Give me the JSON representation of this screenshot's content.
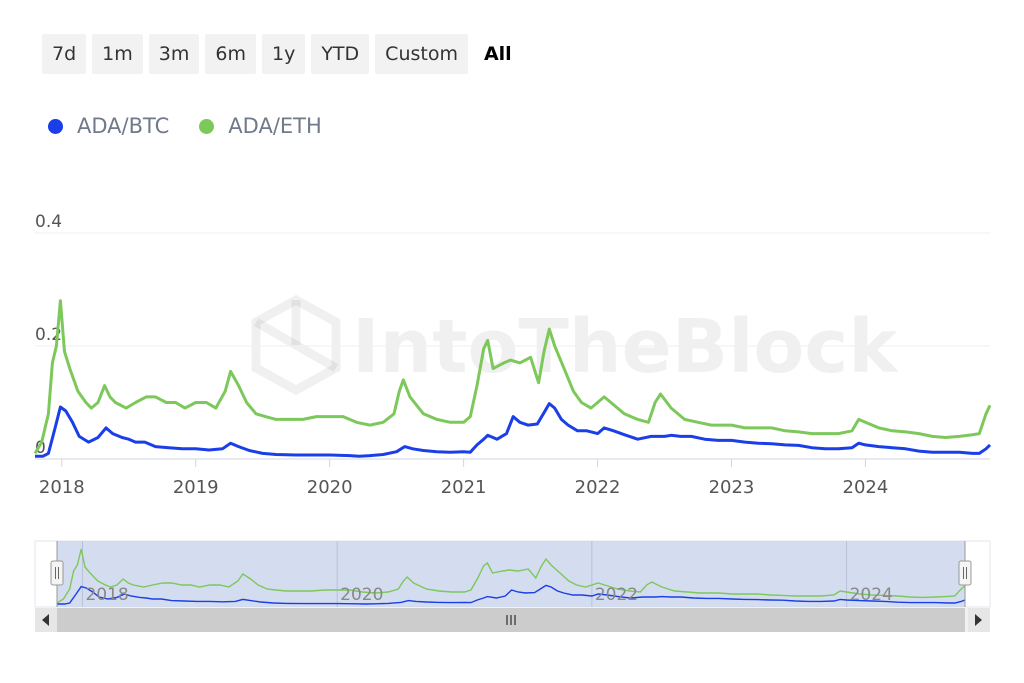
{
  "range_selector": {
    "buttons": [
      "7d",
      "1m",
      "3m",
      "6m",
      "1y",
      "YTD",
      "Custom",
      "All"
    ],
    "active": "All"
  },
  "watermark": "IntoTheBlock",
  "chart_data": {
    "type": "line",
    "title": "",
    "xlabel": "",
    "ylabel": "",
    "x_range": [
      2017.8,
      2024.93
    ],
    "ylim": [
      0,
      0.4
    ],
    "yticks": [
      0,
      0.2,
      0.4
    ],
    "ytick_labels": [
      "0",
      "0.2",
      "0.4"
    ],
    "xticks": [
      2018,
      2019,
      2020,
      2021,
      2022,
      2023,
      2024
    ],
    "xtick_labels": [
      "2018",
      "2019",
      "2020",
      "2021",
      "2022",
      "2023",
      "2024"
    ],
    "navigator_tick_labels": [
      "2018",
      "2020",
      "2022",
      "2024"
    ],
    "legend_position": "top-left",
    "series": [
      {
        "name": "ADA/BTC",
        "color": "#1a3ee8",
        "points": [
          [
            2017.8,
            0.005
          ],
          [
            2017.86,
            0.005
          ],
          [
            2017.9,
            0.01
          ],
          [
            2017.95,
            0.055
          ],
          [
            2017.99,
            0.092
          ],
          [
            2018.03,
            0.085
          ],
          [
            2018.08,
            0.065
          ],
          [
            2018.13,
            0.04
          ],
          [
            2018.2,
            0.03
          ],
          [
            2018.27,
            0.038
          ],
          [
            2018.33,
            0.055
          ],
          [
            2018.38,
            0.045
          ],
          [
            2018.45,
            0.038
          ],
          [
            2018.5,
            0.035
          ],
          [
            2018.55,
            0.03
          ],
          [
            2018.62,
            0.03
          ],
          [
            2018.7,
            0.022
          ],
          [
            2018.8,
            0.02
          ],
          [
            2018.9,
            0.018
          ],
          [
            2019.0,
            0.018
          ],
          [
            2019.1,
            0.016
          ],
          [
            2019.2,
            0.018
          ],
          [
            2019.26,
            0.028
          ],
          [
            2019.32,
            0.022
          ],
          [
            2019.4,
            0.015
          ],
          [
            2019.5,
            0.01
          ],
          [
            2019.6,
            0.008
          ],
          [
            2019.75,
            0.007
          ],
          [
            2019.9,
            0.007
          ],
          [
            2020.0,
            0.007
          ],
          [
            2020.15,
            0.006
          ],
          [
            2020.22,
            0.005
          ],
          [
            2020.3,
            0.006
          ],
          [
            2020.4,
            0.008
          ],
          [
            2020.5,
            0.013
          ],
          [
            2020.56,
            0.022
          ],
          [
            2020.62,
            0.018
          ],
          [
            2020.7,
            0.015
          ],
          [
            2020.8,
            0.013
          ],
          [
            2020.9,
            0.012
          ],
          [
            2021.0,
            0.013
          ],
          [
            2021.05,
            0.012
          ],
          [
            2021.1,
            0.025
          ],
          [
            2021.15,
            0.035
          ],
          [
            2021.18,
            0.042
          ],
          [
            2021.25,
            0.035
          ],
          [
            2021.32,
            0.045
          ],
          [
            2021.37,
            0.075
          ],
          [
            2021.42,
            0.065
          ],
          [
            2021.48,
            0.06
          ],
          [
            2021.55,
            0.062
          ],
          [
            2021.6,
            0.082
          ],
          [
            2021.64,
            0.098
          ],
          [
            2021.68,
            0.09
          ],
          [
            2021.73,
            0.07
          ],
          [
            2021.78,
            0.06
          ],
          [
            2021.85,
            0.05
          ],
          [
            2021.92,
            0.05
          ],
          [
            2022.0,
            0.045
          ],
          [
            2022.05,
            0.055
          ],
          [
            2022.12,
            0.05
          ],
          [
            2022.2,
            0.043
          ],
          [
            2022.3,
            0.035
          ],
          [
            2022.4,
            0.04
          ],
          [
            2022.5,
            0.04
          ],
          [
            2022.55,
            0.042
          ],
          [
            2022.62,
            0.04
          ],
          [
            2022.7,
            0.04
          ],
          [
            2022.8,
            0.035
          ],
          [
            2022.9,
            0.033
          ],
          [
            2023.0,
            0.033
          ],
          [
            2023.1,
            0.03
          ],
          [
            2023.2,
            0.028
          ],
          [
            2023.3,
            0.027
          ],
          [
            2023.4,
            0.025
          ],
          [
            2023.5,
            0.024
          ],
          [
            2023.6,
            0.02
          ],
          [
            2023.7,
            0.018
          ],
          [
            2023.8,
            0.018
          ],
          [
            2023.9,
            0.02
          ],
          [
            2023.95,
            0.028
          ],
          [
            2024.0,
            0.025
          ],
          [
            2024.1,
            0.022
          ],
          [
            2024.2,
            0.02
          ],
          [
            2024.3,
            0.018
          ],
          [
            2024.4,
            0.014
          ],
          [
            2024.5,
            0.012
          ],
          [
            2024.6,
            0.012
          ],
          [
            2024.7,
            0.012
          ],
          [
            2024.8,
            0.01
          ],
          [
            2024.85,
            0.01
          ],
          [
            2024.9,
            0.018
          ],
          [
            2024.93,
            0.025
          ]
        ]
      },
      {
        "name": "ADA/ETH",
        "color": "#7dc85a",
        "points": [
          [
            2017.8,
            0.01
          ],
          [
            2017.85,
            0.03
          ],
          [
            2017.9,
            0.08
          ],
          [
            2017.93,
            0.17
          ],
          [
            2017.96,
            0.2
          ],
          [
            2017.99,
            0.28
          ],
          [
            2018.02,
            0.19
          ],
          [
            2018.06,
            0.16
          ],
          [
            2018.12,
            0.12
          ],
          [
            2018.18,
            0.1
          ],
          [
            2018.22,
            0.09
          ],
          [
            2018.27,
            0.1
          ],
          [
            2018.32,
            0.13
          ],
          [
            2018.36,
            0.11
          ],
          [
            2018.4,
            0.1
          ],
          [
            2018.48,
            0.09
          ],
          [
            2018.55,
            0.1
          ],
          [
            2018.63,
            0.11
          ],
          [
            2018.7,
            0.11
          ],
          [
            2018.78,
            0.1
          ],
          [
            2018.85,
            0.1
          ],
          [
            2018.92,
            0.09
          ],
          [
            2019.0,
            0.1
          ],
          [
            2019.08,
            0.1
          ],
          [
            2019.15,
            0.09
          ],
          [
            2019.22,
            0.12
          ],
          [
            2019.26,
            0.155
          ],
          [
            2019.32,
            0.13
          ],
          [
            2019.38,
            0.1
          ],
          [
            2019.45,
            0.08
          ],
          [
            2019.52,
            0.075
          ],
          [
            2019.6,
            0.07
          ],
          [
            2019.7,
            0.07
          ],
          [
            2019.8,
            0.07
          ],
          [
            2019.9,
            0.075
          ],
          [
            2020.0,
            0.075
          ],
          [
            2020.1,
            0.075
          ],
          [
            2020.2,
            0.065
          ],
          [
            2020.3,
            0.06
          ],
          [
            2020.4,
            0.065
          ],
          [
            2020.48,
            0.08
          ],
          [
            2020.52,
            0.12
          ],
          [
            2020.55,
            0.14
          ],
          [
            2020.6,
            0.11
          ],
          [
            2020.7,
            0.08
          ],
          [
            2020.8,
            0.07
          ],
          [
            2020.9,
            0.065
          ],
          [
            2021.0,
            0.065
          ],
          [
            2021.05,
            0.075
          ],
          [
            2021.1,
            0.13
          ],
          [
            2021.15,
            0.195
          ],
          [
            2021.18,
            0.21
          ],
          [
            2021.22,
            0.16
          ],
          [
            2021.3,
            0.17
          ],
          [
            2021.35,
            0.175
          ],
          [
            2021.42,
            0.17
          ],
          [
            2021.5,
            0.18
          ],
          [
            2021.56,
            0.135
          ],
          [
            2021.6,
            0.19
          ],
          [
            2021.64,
            0.23
          ],
          [
            2021.68,
            0.2
          ],
          [
            2021.75,
            0.16
          ],
          [
            2021.82,
            0.12
          ],
          [
            2021.88,
            0.1
          ],
          [
            2021.95,
            0.09
          ],
          [
            2022.0,
            0.1
          ],
          [
            2022.05,
            0.11
          ],
          [
            2022.1,
            0.1
          ],
          [
            2022.2,
            0.08
          ],
          [
            2022.3,
            0.07
          ],
          [
            2022.38,
            0.065
          ],
          [
            2022.43,
            0.1
          ],
          [
            2022.47,
            0.115
          ],
          [
            2022.55,
            0.09
          ],
          [
            2022.65,
            0.07
          ],
          [
            2022.75,
            0.065
          ],
          [
            2022.85,
            0.06
          ],
          [
            2023.0,
            0.06
          ],
          [
            2023.1,
            0.055
          ],
          [
            2023.2,
            0.055
          ],
          [
            2023.3,
            0.055
          ],
          [
            2023.4,
            0.05
          ],
          [
            2023.5,
            0.048
          ],
          [
            2023.6,
            0.045
          ],
          [
            2023.7,
            0.045
          ],
          [
            2023.8,
            0.045
          ],
          [
            2023.9,
            0.05
          ],
          [
            2023.95,
            0.07
          ],
          [
            2024.0,
            0.065
          ],
          [
            2024.1,
            0.055
          ],
          [
            2024.2,
            0.05
          ],
          [
            2024.3,
            0.048
          ],
          [
            2024.4,
            0.045
          ],
          [
            2024.5,
            0.04
          ],
          [
            2024.6,
            0.038
          ],
          [
            2024.7,
            0.04
          ],
          [
            2024.8,
            0.043
          ],
          [
            2024.85,
            0.045
          ],
          [
            2024.9,
            0.08
          ],
          [
            2024.93,
            0.095
          ]
        ]
      }
    ]
  }
}
